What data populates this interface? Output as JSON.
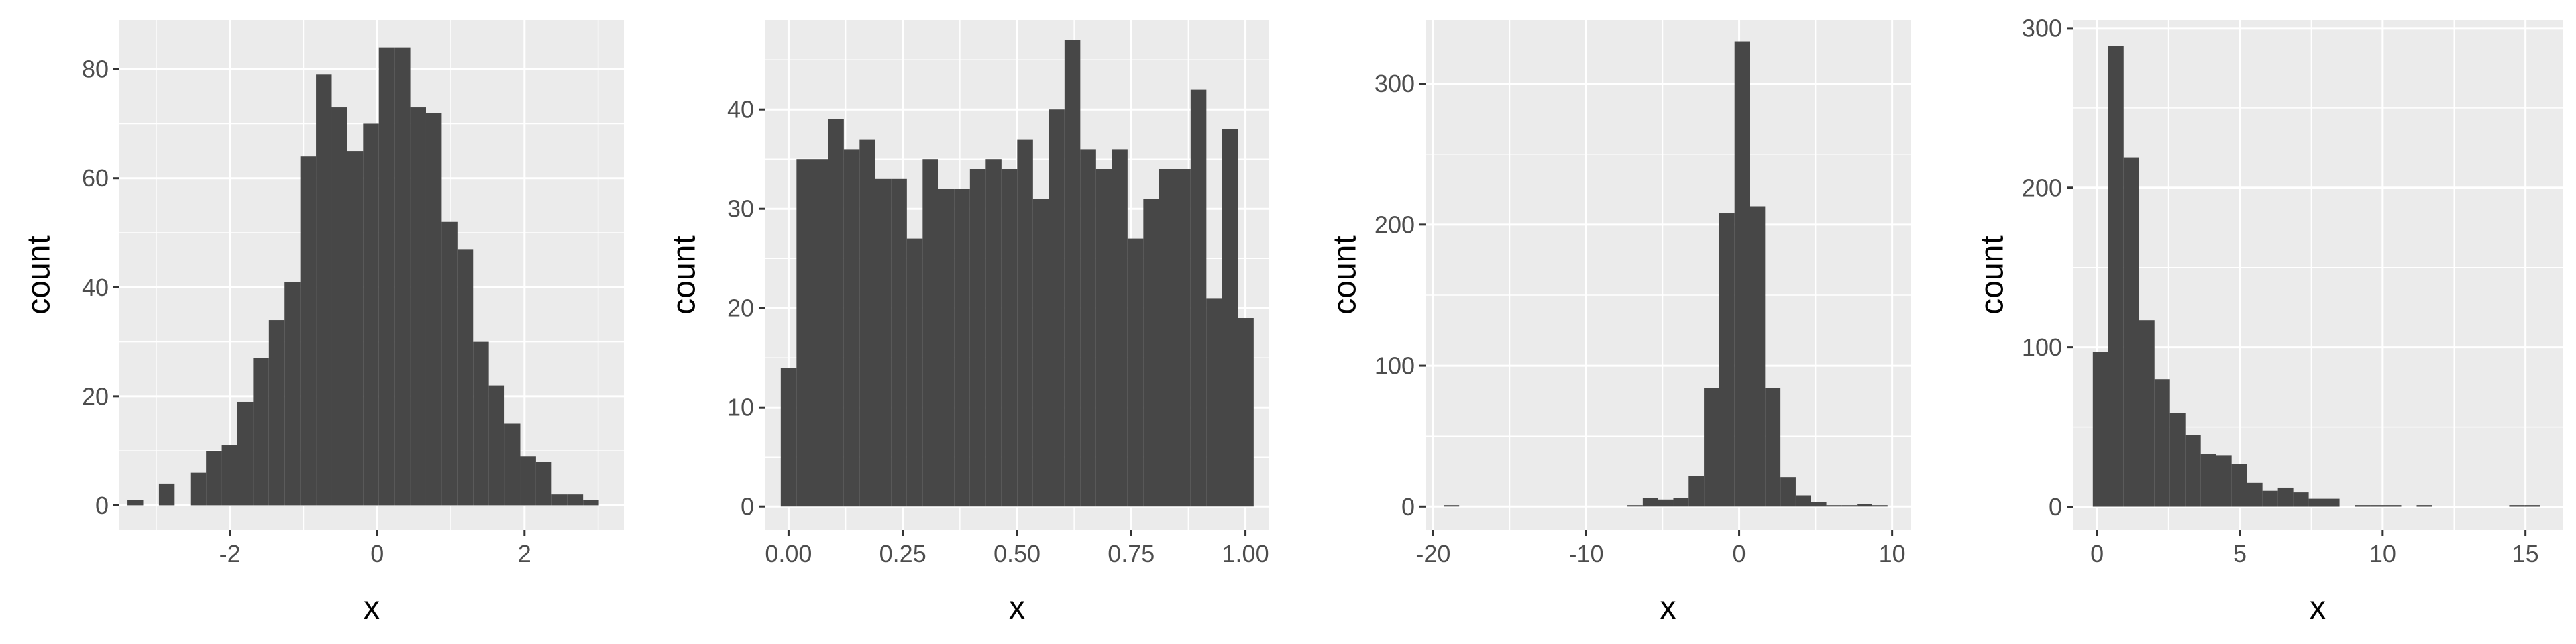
{
  "style": {
    "panel_bg": "#ebebeb",
    "grid": "#ffffff",
    "bar": "#474747",
    "tick_text": "#4d4d4d",
    "title_text": "#000000"
  },
  "chart_data": [
    {
      "type": "bar",
      "subtype": "histogram",
      "xlabel": "x",
      "ylabel": "count",
      "xlim": [
        -3.5,
        3.35
      ],
      "ylim": [
        -4.5,
        89
      ],
      "x_ticks": [
        -2,
        0,
        2
      ],
      "x_tick_labels": [
        "-2",
        "0",
        "2"
      ],
      "y_ticks": [
        0,
        20,
        40,
        60,
        80
      ],
      "y_tick_labels": [
        "0",
        "20",
        "40",
        "60",
        "80"
      ],
      "bin_start": -3.39,
      "bin_width": 0.2133,
      "values": [
        1,
        0,
        4,
        0,
        6,
        10,
        11,
        19,
        27,
        34,
        41,
        64,
        79,
        73,
        65,
        70,
        84,
        84,
        73,
        72,
        52,
        47,
        30,
        22,
        15,
        9,
        8,
        2,
        2,
        1
      ],
      "grid": true
    },
    {
      "type": "bar",
      "subtype": "histogram",
      "xlabel": "x",
      "ylabel": "count",
      "xlim": [
        -0.052,
        1.052
      ],
      "ylim": [
        -2.35,
        49
      ],
      "x_ticks": [
        0,
        0.25,
        0.5,
        0.75,
        1
      ],
      "x_tick_labels": [
        "0.00",
        "0.25",
        "0.50",
        "0.75",
        "1.00"
      ],
      "y_ticks": [
        0,
        10,
        20,
        30,
        40
      ],
      "y_tick_labels": [
        "0",
        "10",
        "20",
        "30",
        "40"
      ],
      "bin_start": -0.017,
      "bin_width": 0.0345,
      "values": [
        14,
        35,
        35,
        39,
        36,
        37,
        33,
        33,
        27,
        35,
        32,
        32,
        34,
        35,
        34,
        37,
        31,
        40,
        47,
        36,
        34,
        36,
        27,
        31,
        34,
        34,
        42,
        21,
        38,
        19
      ],
      "grid": true
    },
    {
      "type": "bar",
      "subtype": "histogram",
      "xlabel": "x",
      "ylabel": "count",
      "xlim": [
        -20.5,
        11.2
      ],
      "ylim": [
        -16.5,
        345
      ],
      "x_ticks": [
        -20,
        -10,
        0,
        10
      ],
      "x_tick_labels": [
        "-20",
        "-10",
        "0",
        "10"
      ],
      "y_ticks": [
        0,
        100,
        200,
        300
      ],
      "y_tick_labels": [
        "0",
        "100",
        "200",
        "300"
      ],
      "bin_start": -19.3,
      "bin_width": 1.0,
      "values": [
        1,
        0,
        0,
        0,
        0,
        0,
        0,
        0,
        0,
        0,
        0,
        0,
        1,
        6,
        5,
        6,
        22,
        84,
        208,
        330,
        213,
        84,
        21,
        8,
        3,
        1,
        1,
        2,
        1,
        0
      ],
      "grid": true
    },
    {
      "type": "bar",
      "subtype": "histogram",
      "xlabel": "x",
      "ylabel": "count",
      "xlim": [
        -0.85,
        16.3
      ],
      "ylim": [
        -14.5,
        305
      ],
      "x_ticks": [
        0,
        5,
        10,
        15
      ],
      "x_tick_labels": [
        "0",
        "5",
        "10",
        "15"
      ],
      "y_ticks": [
        0,
        100,
        200,
        300
      ],
      "y_tick_labels": [
        "0",
        "100",
        "200",
        "300"
      ],
      "bin_start": -0.15,
      "bin_width": 0.54,
      "values": [
        97,
        289,
        219,
        117,
        80,
        59,
        45,
        33,
        32,
        27,
        15,
        10,
        12,
        9,
        5,
        5,
        0,
        1,
        1,
        1,
        0,
        1,
        0,
        0,
        0,
        0,
        0,
        1,
        1,
        0
      ],
      "grid": true
    }
  ]
}
